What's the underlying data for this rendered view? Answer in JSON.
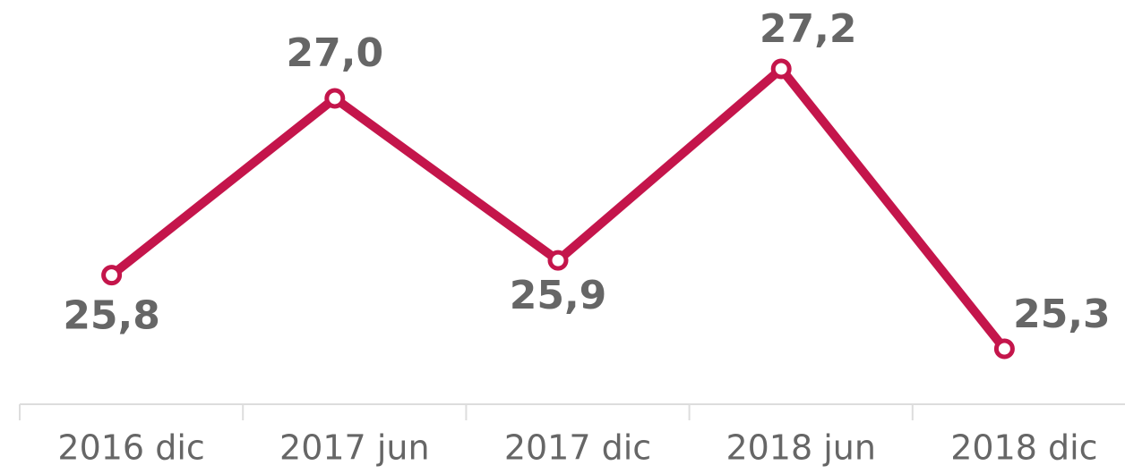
{
  "chart_data": {
    "type": "line",
    "categories": [
      "2016 dic",
      "2017 jun",
      "2017 dic",
      "2018 jun",
      "2018 dic"
    ],
    "series": [
      {
        "color": "#c4154b",
        "values": [
          25.8,
          27.0,
          25.9,
          27.2,
          25.3
        ],
        "value_labels": [
          "25,8",
          "27,0",
          "25,9",
          "27,2",
          "25,3"
        ]
      }
    ]
  }
}
